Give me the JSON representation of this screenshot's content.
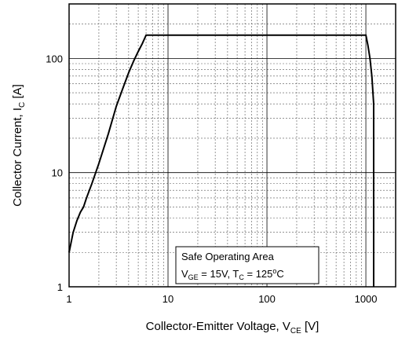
{
  "chart_data": {
    "type": "line",
    "title": "",
    "x_scale": "log",
    "y_scale": "log",
    "xlim": [
      1,
      2000
    ],
    "ylim": [
      1,
      300
    ],
    "x_ticks": [
      {
        "value": 1,
        "label": "1"
      },
      {
        "value": 10,
        "label": "10"
      },
      {
        "value": 100,
        "label": "100"
      },
      {
        "value": 1000,
        "label": "1000"
      }
    ],
    "y_ticks": [
      {
        "value": 1,
        "label": "1"
      },
      {
        "value": 10,
        "label": "10"
      },
      {
        "value": 100,
        "label": "100"
      }
    ],
    "xlabel": {
      "main": "Collector-Emitter Voltage, V",
      "sub": "CE",
      "unit": " [V]"
    },
    "ylabel": {
      "main": "Collector Current, I",
      "sub": "C",
      "unit": " [A]"
    },
    "grid": true,
    "legend": {
      "placement": "bottom-center",
      "line1": "Safe Operating Area",
      "line2": {
        "v": "V",
        "v_sub": "GE",
        "v_val": " = 15V, T",
        "t_sub": "C",
        "t_val": " = 125",
        "deg": "o",
        "unit": "C"
      }
    },
    "series": [
      {
        "color": "#000000",
        "x": [
          1,
          1.1,
          1.2,
          1.3,
          1.4,
          1.5,
          1.7,
          2,
          2.5,
          3,
          3.5,
          4,
          4.5,
          5,
          5.5,
          6,
          10,
          100,
          1000,
          1050,
          1100,
          1150,
          1200,
          1200
        ],
        "y": [
          2,
          3,
          3.8,
          4.5,
          5,
          6,
          8,
          12,
          22,
          38,
          55,
          75,
          95,
          115,
          135,
          160,
          160,
          160,
          160,
          130,
          100,
          70,
          40,
          1
        ]
      }
    ]
  }
}
